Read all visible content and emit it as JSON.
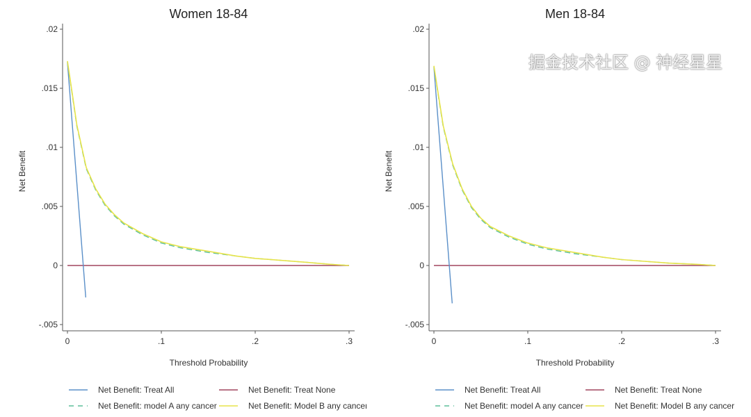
{
  "watermark": "掘金技术社区 @ 神经星星",
  "colors": {
    "treat_all": "#5a8fc8",
    "treat_none": "#a0455e",
    "model_a": "#5bbf9a",
    "model_b": "#e6e34a",
    "axis": "#555555"
  },
  "chart_data": [
    {
      "type": "line",
      "title": "Women 18-84",
      "xlabel": "Threshold Probability",
      "ylabel": "Net Benefit",
      "xlim": [
        0,
        0.3
      ],
      "ylim": [
        -0.005,
        0.02
      ],
      "xticks": [
        {
          "v": 0,
          "label": "0"
        },
        {
          "v": 0.1,
          "label": ".1"
        },
        {
          "v": 0.2,
          "label": ".2"
        },
        {
          "v": 0.3,
          "label": ".3"
        }
      ],
      "yticks": [
        {
          "v": -0.005,
          "label": "-.005"
        },
        {
          "v": 0,
          "label": "0"
        },
        {
          "v": 0.005,
          "label": ".005"
        },
        {
          "v": 0.01,
          "label": ".01"
        },
        {
          "v": 0.015,
          "label": ".015"
        },
        {
          "v": 0.02,
          "label": ".02"
        }
      ],
      "legend_position": "bottom",
      "series": [
        {
          "name": "Net Benefit: Treat All",
          "key": "treat_all",
          "dash": false,
          "x": [
            0,
            0.0195
          ],
          "y": [
            0.0172,
            -0.0027
          ]
        },
        {
          "name": "Net Benefit: Treat None",
          "key": "treat_none",
          "dash": false,
          "x": [
            0,
            0.3
          ],
          "y": [
            0,
            0
          ]
        },
        {
          "name": "Net Benefit: model A any cancer",
          "key": "model_a",
          "dash": true,
          "x": [
            0,
            0.005,
            0.01,
            0.02,
            0.03,
            0.04,
            0.05,
            0.06,
            0.08,
            0.1,
            0.12,
            0.15,
            0.18,
            0.2,
            0.25,
            0.28,
            0.3
          ],
          "y": [
            0.0172,
            0.0145,
            0.0118,
            0.0082,
            0.0064,
            0.0051,
            0.0042,
            0.0035,
            0.0026,
            0.0019,
            0.0015,
            0.0011,
            0.0008,
            0.0006,
            0.0003,
            0.0001,
            0
          ]
        },
        {
          "name": "Net Benefit: Model B any cancer",
          "key": "model_b",
          "dash": false,
          "x": [
            0,
            0.005,
            0.01,
            0.02,
            0.03,
            0.04,
            0.05,
            0.06,
            0.08,
            0.1,
            0.12,
            0.15,
            0.18,
            0.2,
            0.25,
            0.28,
            0.3
          ],
          "y": [
            0.0173,
            0.0146,
            0.0119,
            0.0083,
            0.0065,
            0.0052,
            0.0043,
            0.0036,
            0.0027,
            0.002,
            0.0016,
            0.0012,
            0.0008,
            0.0006,
            0.0003,
            0.0001,
            0
          ]
        }
      ]
    },
    {
      "type": "line",
      "title": "Men 18-84",
      "xlabel": "Threshold Probability",
      "ylabel": "Net Benefit",
      "xlim": [
        0,
        0.3
      ],
      "ylim": [
        -0.005,
        0.02
      ],
      "xticks": [
        {
          "v": 0,
          "label": "0"
        },
        {
          "v": 0.1,
          "label": ".1"
        },
        {
          "v": 0.2,
          "label": ".2"
        },
        {
          "v": 0.3,
          "label": ".3"
        }
      ],
      "yticks": [
        {
          "v": -0.005,
          "label": "-.005"
        },
        {
          "v": 0,
          "label": "0"
        },
        {
          "v": 0.005,
          "label": ".005"
        },
        {
          "v": 0.01,
          "label": ".01"
        },
        {
          "v": 0.015,
          "label": ".015"
        },
        {
          "v": 0.02,
          "label": ".02"
        }
      ],
      "legend_position": "bottom",
      "series": [
        {
          "name": "Net Benefit: Treat All",
          "key": "treat_all",
          "dash": false,
          "x": [
            0,
            0.0195
          ],
          "y": [
            0.0168,
            -0.0032
          ]
        },
        {
          "name": "Net Benefit: Treat None",
          "key": "treat_none",
          "dash": false,
          "x": [
            0,
            0.3
          ],
          "y": [
            0,
            0
          ]
        },
        {
          "name": "Net Benefit: model A any cancer",
          "key": "model_a",
          "dash": true,
          "x": [
            0,
            0.005,
            0.01,
            0.02,
            0.03,
            0.04,
            0.05,
            0.06,
            0.08,
            0.1,
            0.12,
            0.15,
            0.18,
            0.2,
            0.25,
            0.28,
            0.3
          ],
          "y": [
            0.0168,
            0.0142,
            0.0117,
            0.0085,
            0.0064,
            0.0049,
            0.0039,
            0.0032,
            0.0024,
            0.0018,
            0.0014,
            0.001,
            0.0007,
            0.0005,
            0.0002,
            0.0001,
            0
          ]
        },
        {
          "name": "Net Benefit: Model B any cancer",
          "key": "model_b",
          "dash": false,
          "x": [
            0,
            0.005,
            0.01,
            0.02,
            0.03,
            0.04,
            0.05,
            0.06,
            0.08,
            0.1,
            0.12,
            0.15,
            0.18,
            0.2,
            0.25,
            0.28,
            0.3
          ],
          "y": [
            0.0169,
            0.0143,
            0.0118,
            0.0086,
            0.0065,
            0.005,
            0.004,
            0.0033,
            0.0025,
            0.0019,
            0.0015,
            0.0011,
            0.0007,
            0.0005,
            0.0002,
            0.0001,
            0
          ]
        }
      ]
    }
  ]
}
